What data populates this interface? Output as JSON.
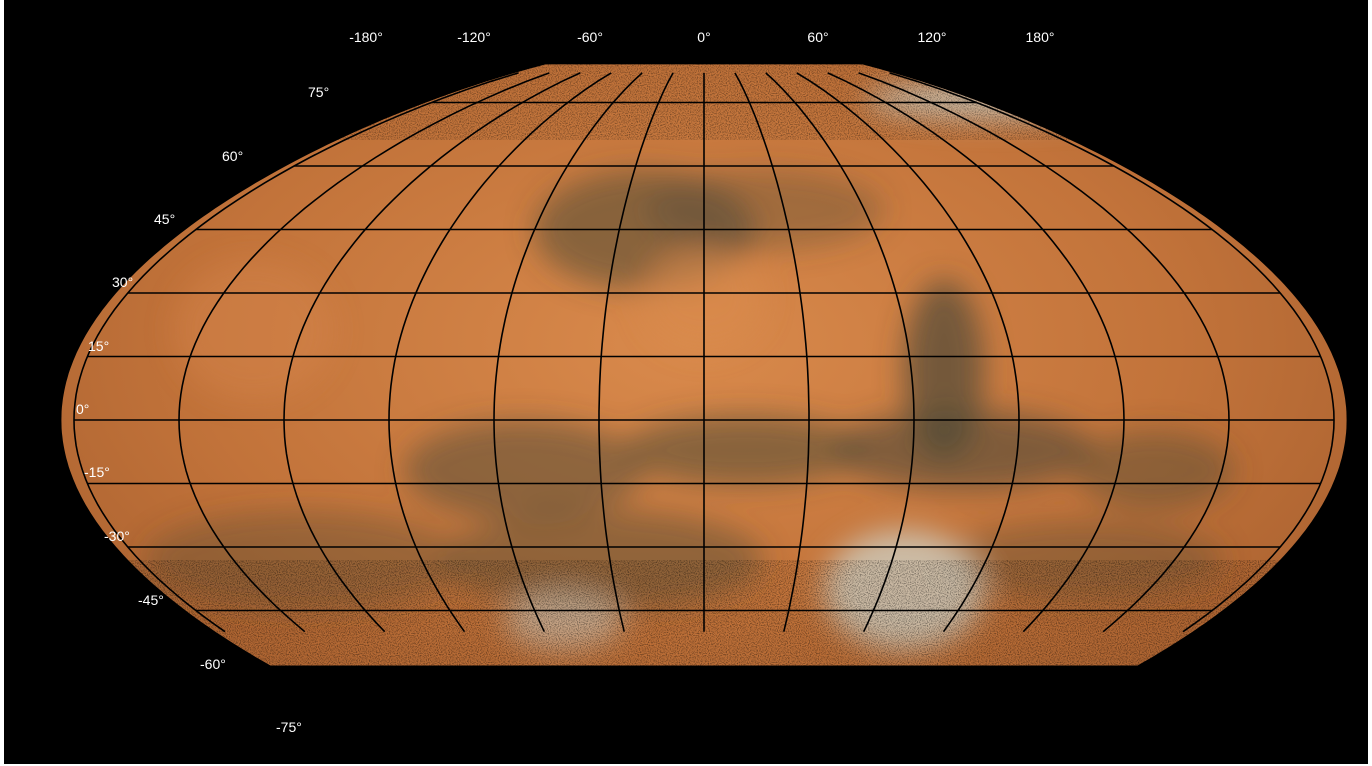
{
  "map": {
    "longitude_labels": [
      "-180°",
      "-120°",
      "-60°",
      "0°",
      "60°",
      "120°",
      "180°"
    ],
    "latitude_labels": [
      "75°",
      "60°",
      "45°",
      "30°",
      "15°",
      "0°",
      "-15°",
      "-30°",
      "-45°",
      "-60°",
      "-75°"
    ],
    "colors": {
      "background": "#000000",
      "surface_base": "#c2733a",
      "surface_light": "#d98a4c",
      "dark_region": "#4e4a36",
      "polar_cap": "#cfd8d2",
      "grid": "#000000",
      "label": "#ffffff"
    }
  }
}
